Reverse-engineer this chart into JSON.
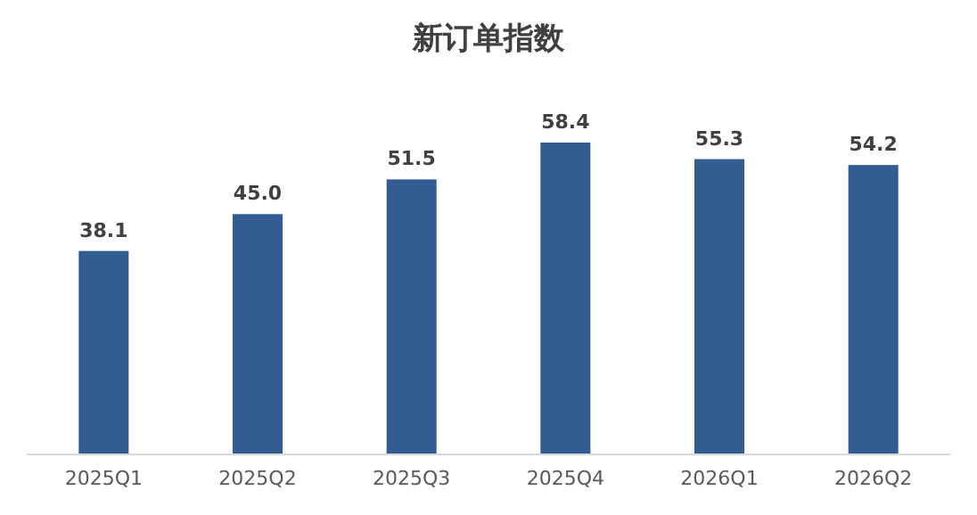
{
  "chart_data": {
    "type": "bar",
    "title": "新订单指数",
    "categories": [
      "2025Q1",
      "2025Q2",
      "2025Q3",
      "2025Q4",
      "2026Q1",
      "2026Q2"
    ],
    "values": [
      38.1,
      45.0,
      51.5,
      58.4,
      55.3,
      54.2
    ],
    "value_labels": [
      "38.1",
      "45.0",
      "51.5",
      "58.4",
      "55.3",
      "54.2"
    ],
    "color": "#335d92"
  }
}
